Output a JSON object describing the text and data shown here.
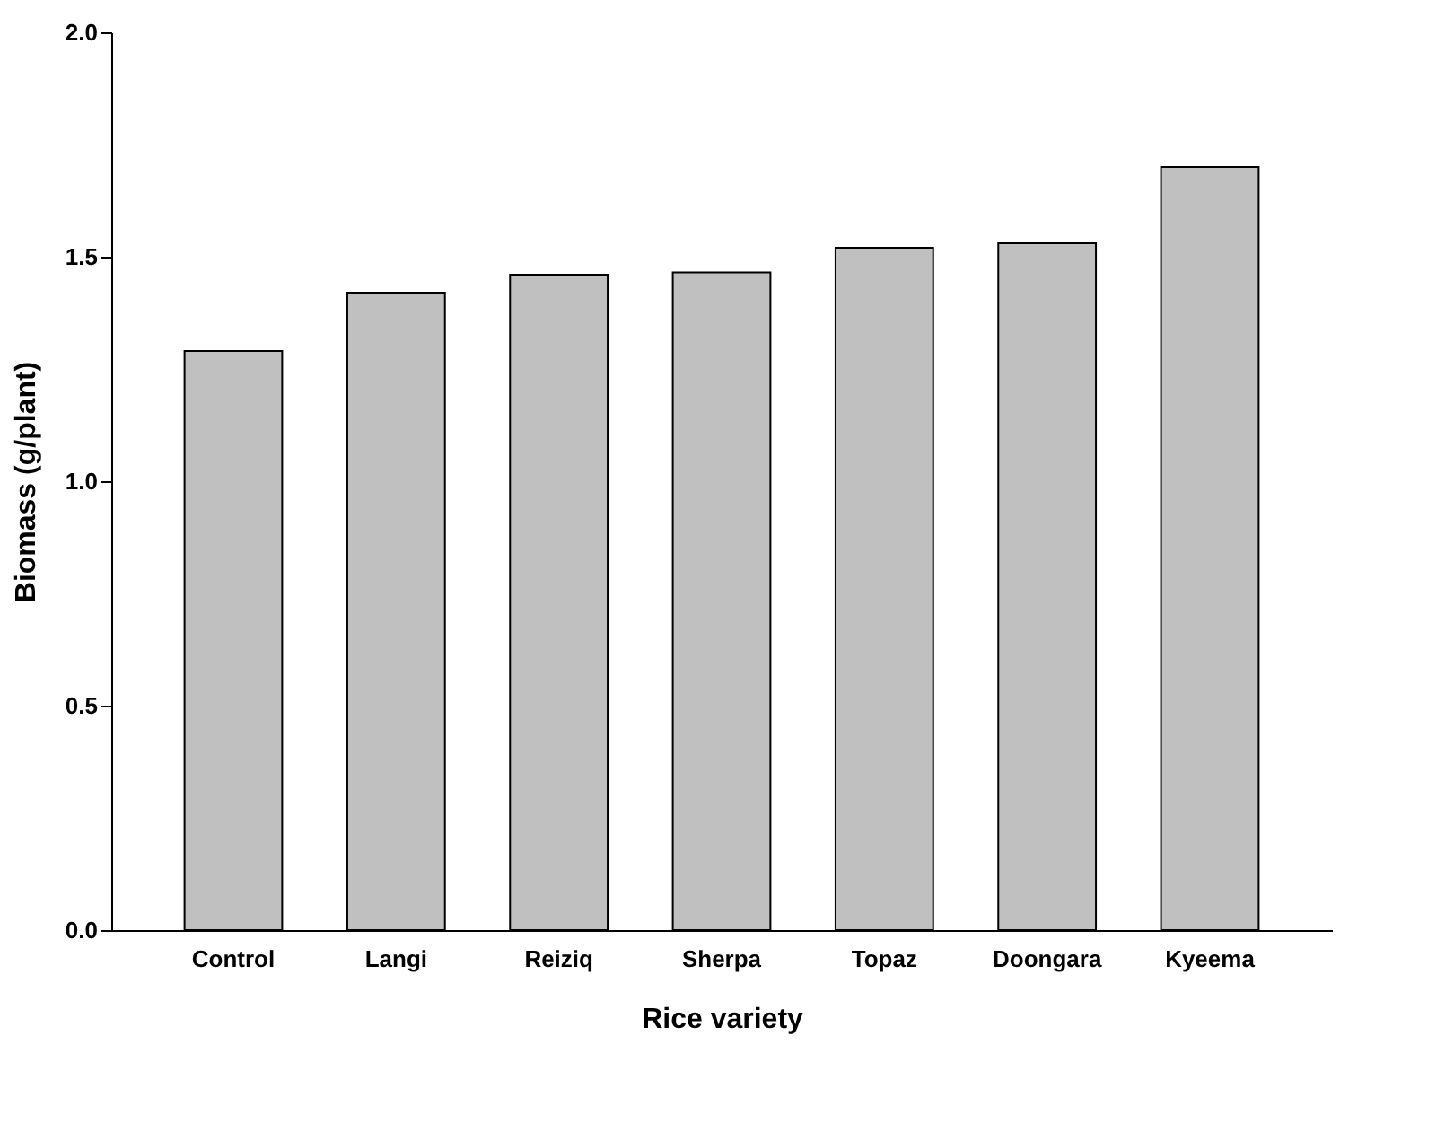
{
  "chart_data": {
    "type": "bar",
    "xlabel": "Rice variety",
    "ylabel": "Biomass (g/plant)",
    "categories": [
      "Control",
      "Langi",
      "Reiziq",
      "Sherpa",
      "Topaz",
      "Doongara",
      "Kyeema"
    ],
    "values": [
      1.29,
      1.42,
      1.46,
      1.465,
      1.52,
      1.53,
      1.7
    ],
    "color": "#c0c0c0",
    "ylim": [
      0,
      2.0
    ],
    "yticks": [
      {
        "value": 0,
        "label": "0.0"
      },
      {
        "value": 0.5,
        "label": "0.5"
      },
      {
        "value": 1.0,
        "label": "1.0"
      },
      {
        "value": 1.5,
        "label": "1.5"
      },
      {
        "value": 2.0,
        "label": "2.0"
      }
    ],
    "grid": false
  }
}
